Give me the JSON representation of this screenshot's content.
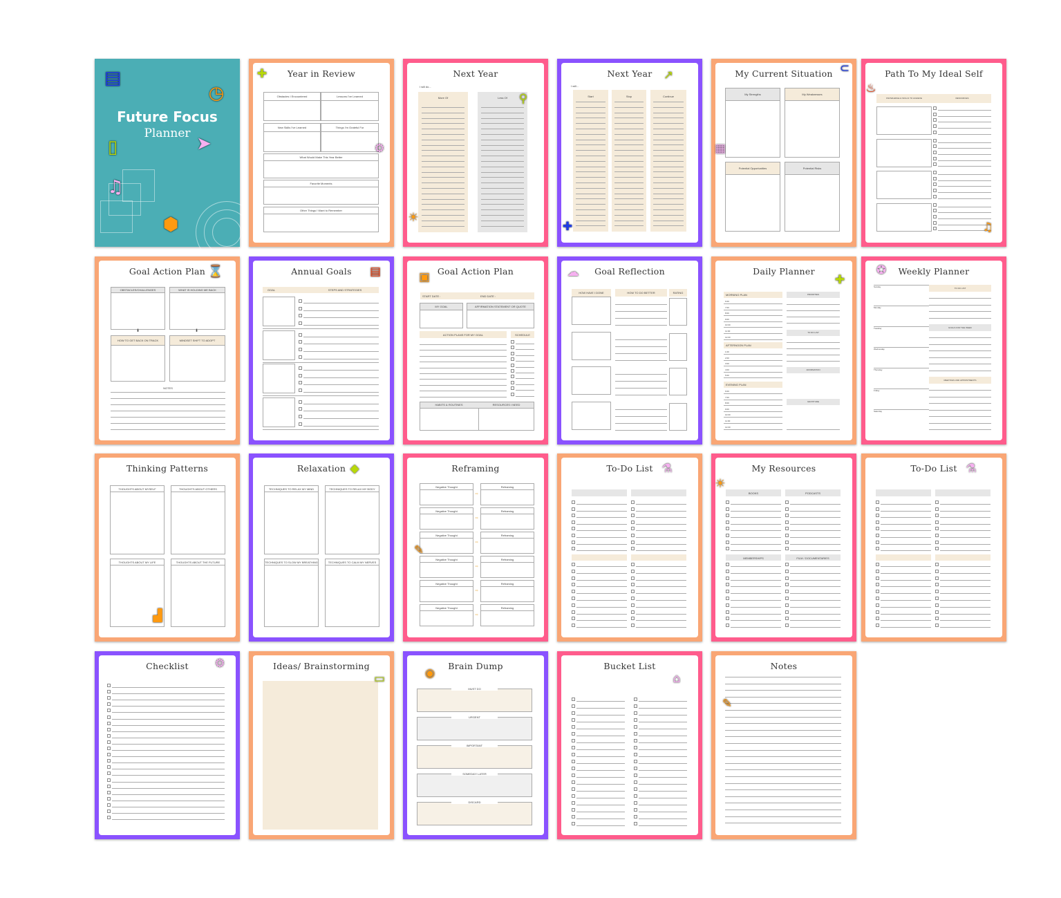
{
  "colors": {
    "orange": "#F9A675",
    "pink": "#FF5C8C",
    "purple": "#8A52FF",
    "teal": "#4BAEB5",
    "beige": "#F5EBDA",
    "gray": "#E6E6E6"
  },
  "cover": {
    "title": "Future Focus",
    "subtitle": "Planner",
    "icons": [
      {
        "name": "clapperboard",
        "color": "#1E3CE6"
      },
      {
        "name": "clock",
        "color": "#FF9A10"
      },
      {
        "name": "music-player",
        "color": "#B8D80A"
      },
      {
        "name": "cursor",
        "color": "#F6B0F0"
      },
      {
        "name": "music-note",
        "color": "#F6B0F0"
      },
      {
        "name": "box",
        "color": "#FF9A10"
      }
    ]
  },
  "pages": [
    {
      "title": "Year in Review",
      "border": "#F9A675",
      "labels": [
        "Obstacles I Encountered",
        "Lessons I've Learned",
        "New Skills I've Learned",
        "Things I'm Grateful For",
        "What Would Make This Year Better",
        "Favorite Moments",
        "Other Things I Want to Remember"
      ],
      "icons": [
        {
          "name": "puzzle",
          "color": "#B8D80A"
        },
        {
          "name": "gear",
          "color": "#F6B0F0"
        }
      ]
    },
    {
      "title": "Next Year",
      "border": "#FF5C8C",
      "labels": [
        "I will do...",
        "More Of",
        "Less Of"
      ],
      "icons": [
        {
          "name": "magnifier",
          "color": "#B8D80A"
        },
        {
          "name": "lightbulb",
          "color": "#FF9A10"
        }
      ]
    },
    {
      "title": "Next Year",
      "border": "#8A52FF",
      "labels": [
        "I will...",
        "Start",
        "Stop",
        "Continue"
      ],
      "icons": [
        {
          "name": "trend-arrow",
          "color": "#B8D80A"
        },
        {
          "name": "puzzle",
          "color": "#1E3CE6"
        }
      ]
    },
    {
      "title": "My Current Situation",
      "border": "#F9A675",
      "labels": [
        "My Strengths",
        "My Weaknesses",
        "Potential Opportunities",
        "Potential Risks"
      ],
      "icons": [
        {
          "name": "paperclip",
          "color": "#1E3CE6"
        },
        {
          "name": "calculator",
          "color": "#F6B0F0"
        }
      ]
    },
    {
      "title": "Path To My Ideal Self",
      "border": "#FF5C8C",
      "labels": [
        "KNOWLEDGE & SKILLS TO ACHIEVE",
        "RESOURCES"
      ],
      "icons": [
        {
          "name": "microphone",
          "color": "#F04010"
        },
        {
          "name": "music-note",
          "color": "#FF9A10"
        }
      ]
    },
    {
      "title": "Goal Action Plan",
      "border": "#F9A675",
      "labels": [
        "OBSTACLES/CHALLENGES",
        "WHAT IS HOLDING ME BACK",
        "HOW TO GET BACK ON TRACK",
        "MINDSET SHIFT TO ADOPT",
        "NOTES"
      ],
      "icons": [
        {
          "name": "hourglass",
          "color": "#B8D80A"
        }
      ]
    },
    {
      "title": "Annual Goals",
      "border": "#8A52FF",
      "labels": [
        "GOAL",
        "STEPS AND STRATEGIES"
      ],
      "icons": [
        {
          "name": "clipboard",
          "color": "#F04010"
        }
      ]
    },
    {
      "title": "Goal Action Plan",
      "border": "#FF5C8C",
      "labels": [
        "START DATE :",
        "END DATE :",
        "MY GOAL",
        "AFFIRMATION STATEMENT OR QUOTE",
        "ACTION PLANS FOR MY GOAL",
        "SCHEDULE",
        "HABITS & ROUTINES",
        "RESOURCES I NEED"
      ],
      "icons": [
        {
          "name": "passport",
          "color": "#FF9A10"
        }
      ]
    },
    {
      "title": "Goal Reflection",
      "border": "#8A52FF",
      "labels": [
        "HOW HAVE I DONE",
        "HOW TO DO BETTER",
        "RATING"
      ],
      "icons": [
        {
          "name": "cloud-upload",
          "color": "#F6B0F0"
        }
      ]
    },
    {
      "title": "Daily Planner",
      "border": "#F9A675",
      "labels": [
        "MORNING PLAN",
        "AFTERNOON PLAN",
        "EVENING PLAN",
        "PRIORITIES",
        "TO DO LIST",
        "AFFIRMATION",
        "GRATITUDE"
      ],
      "times_morning": [
        "6:00",
        "7:00",
        "8:00",
        "9:00",
        "10:00",
        "11:00",
        "12:00"
      ],
      "times_afternoon": [
        "1:00",
        "2:00",
        "3:00",
        "4:00",
        "5:00"
      ],
      "times_evening": [
        "6:00",
        "7:00",
        "8:00",
        "9:00",
        "10:00",
        "11:00",
        "12:00"
      ],
      "icons": [
        {
          "name": "puzzle",
          "color": "#B8D80A"
        }
      ]
    },
    {
      "title": "Weekly Planner",
      "border": "#FF5C8C",
      "labels": [
        "TO DO LIST",
        "GOALS FOR THE WEEK",
        "MEETINGS AND APPOINTMENTS"
      ],
      "days": [
        "Sunday",
        "Monday",
        "Tuesday",
        "Wednesday",
        "Thursday",
        "Friday",
        "Saturday"
      ],
      "icons": [
        {
          "name": "ticket",
          "color": "#F6B0F0"
        }
      ]
    },
    {
      "title": "Thinking Patterns",
      "border": "#F9A675",
      "labels": [
        "THOUGHTS ABOUT MYSELF",
        "THOUGHTS ABOUT OTHERS",
        "THOUGHTS ABOUT MY LIFE",
        "THOUGHTS ABOUT THE FUTURE"
      ],
      "icons": [
        {
          "name": "stairs",
          "color": "#FF9A10"
        }
      ]
    },
    {
      "title": "Relaxation",
      "border": "#8A52FF",
      "labels": [
        "TECHNIQUES TO RELAX MY MIND",
        "TECHNIQUES TO RELAX MY BODY",
        "TECHNIQUES TO SLOW MY BREATHING",
        "TECHNIQUES TO CALM MY NERVES"
      ],
      "icons": [
        {
          "name": "shapes",
          "color": "#B8D80A"
        }
      ]
    },
    {
      "title": "Reframing",
      "border": "#FF5C8C",
      "labels": [
        "Negative Thought",
        "Reframing"
      ],
      "icons": [
        {
          "name": "pencil",
          "color": "#FF9A10"
        }
      ]
    },
    {
      "title": "To-Do List",
      "border": "#F9A675",
      "labels": [],
      "icons": [
        {
          "name": "flask",
          "color": "#F6B0F0"
        }
      ]
    },
    {
      "title": "My Resources",
      "border": "#FF5C8C",
      "labels": [
        "BOOKS",
        "PODCASTS",
        "MEMBERSHIPS",
        "FILM / DOCUMENTARIES"
      ],
      "icons": [
        {
          "name": "lightbulb",
          "color": "#FF9A10"
        }
      ]
    },
    {
      "title": "To-Do List",
      "border": "#F9A675",
      "labels": [],
      "icons": [
        {
          "name": "flask",
          "color": "#F6B0F0"
        }
      ]
    },
    {
      "title": "Checklist",
      "border": "#8A52FF",
      "labels": [],
      "icons": [
        {
          "name": "gear",
          "color": "#F6B0F0"
        }
      ]
    },
    {
      "title": "Ideas/ Brainstorming",
      "border": "#F9A675",
      "labels": [],
      "icons": [
        {
          "name": "briefcase",
          "color": "#B8D80A"
        }
      ]
    },
    {
      "title": "Brain Dump",
      "border": "#8A52FF",
      "labels": [
        "MUST DO",
        "URGENT",
        "IMPORTANT",
        "SOMEDAY/ LATER",
        "DISCARD"
      ],
      "icons": [
        {
          "name": "coin",
          "color": "#FF9A10"
        }
      ]
    },
    {
      "title": "Bucket List",
      "border": "#FF5C8C",
      "labels": [],
      "icons": [
        {
          "name": "house",
          "color": "#F6B0F0"
        }
      ]
    },
    {
      "title": "Notes",
      "border": "#F9A675",
      "labels": [],
      "icons": [
        {
          "name": "pencil",
          "color": "#FF9A10"
        }
      ]
    }
  ]
}
